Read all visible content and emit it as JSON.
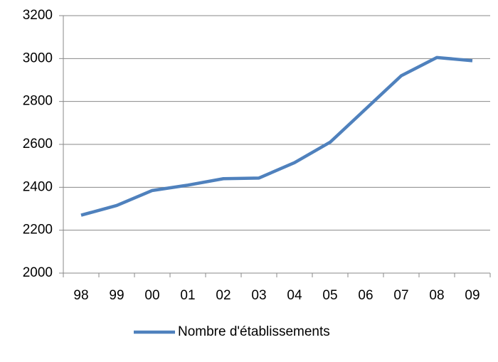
{
  "chart_data": {
    "type": "line",
    "categories": [
      "98",
      "99",
      "00",
      "01",
      "02",
      "03",
      "04",
      "05",
      "06",
      "07",
      "08",
      "09"
    ],
    "series": [
      {
        "name": "Nombre d'établissements",
        "color": "#4f81bd",
        "values": [
          2270,
          2315,
          2385,
          2410,
          2440,
          2443,
          2515,
          2610,
          2765,
          2920,
          3005,
          2990
        ]
      }
    ],
    "ylim": [
      2000,
      3200
    ],
    "yticks": [
      2000,
      2200,
      2400,
      2600,
      2800,
      3000,
      3200
    ],
    "grid": true,
    "legend": "bottom"
  }
}
